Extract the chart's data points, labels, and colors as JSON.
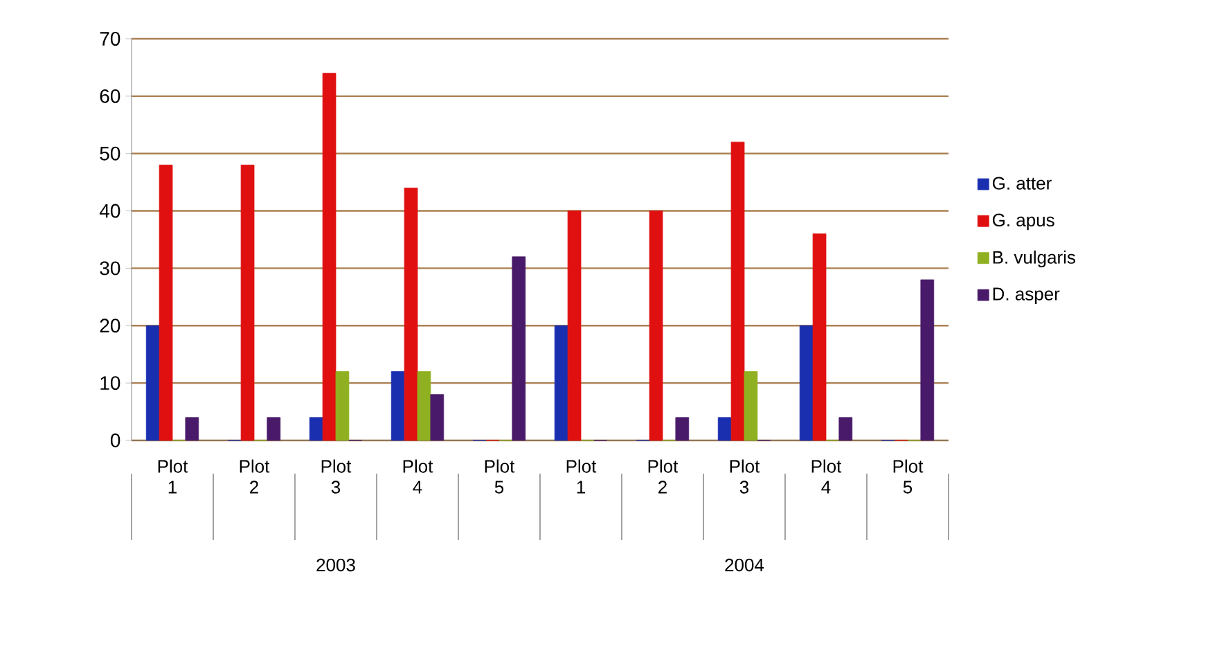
{
  "chart_data": {
    "type": "bar",
    "categories": [
      "Plot 1",
      "Plot 2",
      "Plot 3",
      "Plot 4",
      "Plot 5",
      "Plot 1",
      "Plot 2",
      "Plot 3",
      "Plot 4",
      "Plot 5"
    ],
    "series": [
      {
        "name": "G. atter",
        "color": "#1a2fb0",
        "values": [
          20,
          0,
          4,
          12,
          0,
          20,
          0,
          4,
          20,
          0
        ]
      },
      {
        "name": "G. apus",
        "color": "#e01010",
        "values": [
          48,
          48,
          64,
          44,
          0,
          40,
          40,
          52,
          36,
          0
        ]
      },
      {
        "name": "B. vulgaris",
        "color": "#8fb020",
        "values": [
          0,
          0,
          12,
          12,
          0,
          0,
          0,
          12,
          0,
          0
        ]
      },
      {
        "name": "D. asper",
        "color": "#4a1a6a",
        "values": [
          4,
          4,
          0,
          8,
          32,
          0,
          4,
          0,
          4,
          28
        ]
      }
    ],
    "annotations": [
      "2003",
      "2004"
    ],
    "ylim": [
      0,
      70
    ],
    "yticks": [
      0,
      10,
      20,
      30,
      40,
      50,
      60,
      70
    ],
    "grid": "y",
    "legend": "right"
  }
}
